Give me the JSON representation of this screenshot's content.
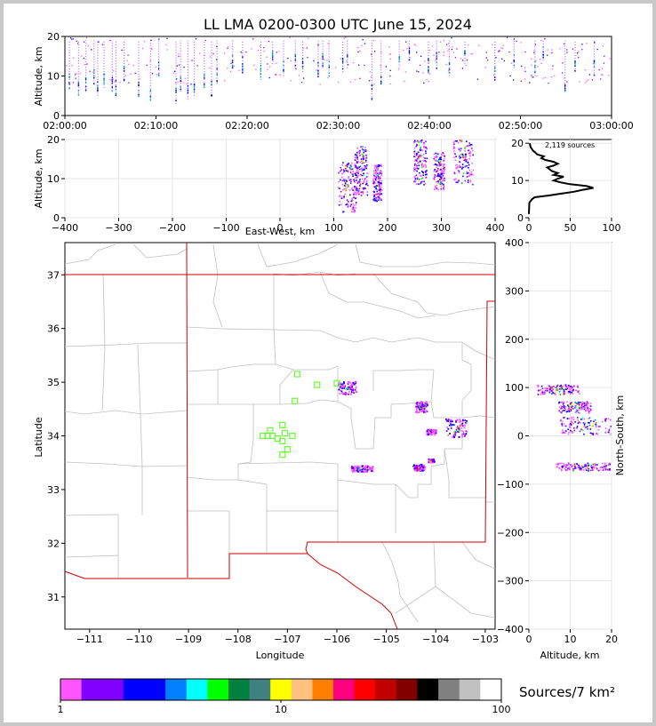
{
  "chart_data": [
    {
      "panel": "time-altitude",
      "type": "scatter",
      "title": "LL LMA 0200-0300 UTC June 15, 2024",
      "ylabel": "Altitude, km",
      "x_ticks": [
        "02:00:00",
        "02:10:00",
        "02:20:00",
        "02:30:00",
        "02:40:00",
        "02:50:00",
        "03:00:00"
      ],
      "xlim_minutes": [
        0,
        60
      ],
      "y_ticks": [
        0,
        10,
        20
      ],
      "ylim": [
        0,
        20
      ],
      "columns_min": [
        0.5,
        1.5,
        2.3,
        3.2,
        3.6,
        4.3,
        5.2,
        5.6,
        6.5,
        8.1,
        9.4,
        10.3,
        12.2,
        12.7,
        13.5,
        14.2,
        15.3,
        16.1,
        16.7,
        18.4,
        19.5,
        21.5,
        22.8,
        24.0,
        25.3,
        26.1,
        27.8,
        28.3,
        29.0,
        30.5,
        31.0,
        33.7,
        34.7,
        36.7,
        37.8,
        39.9,
        40.8,
        42.2,
        43.9,
        47.2,
        49.3,
        51.6,
        52.5,
        54.9,
        56.0,
        58.1
      ],
      "columns_ymin": [
        7,
        5,
        6,
        8,
        5,
        7,
        6,
        5,
        9,
        5,
        4,
        10,
        3,
        6,
        4,
        5,
        7,
        5,
        8,
        12,
        11,
        9,
        13,
        10,
        12,
        11,
        10,
        12,
        10,
        11,
        12,
        4,
        8,
        12,
        14,
        11,
        12,
        10,
        13,
        9,
        12,
        10,
        14,
        6,
        11,
        10
      ]
    },
    {
      "panel": "east-west-altitude",
      "type": "scatter",
      "xlabel": "East-West, km",
      "ylabel": "Altitude, km",
      "x_ticks": [
        -400,
        -300,
        -200,
        -100,
        0,
        100,
        200,
        300,
        400
      ],
      "xlim": [
        -400,
        400
      ],
      "y_ticks": [
        0,
        10,
        20
      ],
      "ylim": [
        0,
        20
      ],
      "clusters": [
        {
          "x": 125,
          "xw": 18,
          "y": 8,
          "yw": 4
        },
        {
          "x": 150,
          "xw": 12,
          "y": 12,
          "yw": 4
        },
        {
          "x": 180,
          "xw": 8,
          "y": 9,
          "yw": 3
        },
        {
          "x": 260,
          "xw": 12,
          "y": 15,
          "yw": 4
        },
        {
          "x": 295,
          "xw": 10,
          "y": 12,
          "yw": 3
        },
        {
          "x": 340,
          "xw": 18,
          "y": 15,
          "yw": 4
        }
      ]
    },
    {
      "panel": "altitude-histogram",
      "type": "line",
      "annotation": "2,119 sources",
      "x_ticks": [
        0,
        50,
        100
      ],
      "xlim": [
        0,
        100
      ],
      "y_ticks": [
        0,
        10,
        20
      ],
      "ylim": [
        0,
        21
      ],
      "profile": [
        [
          0,
          1
        ],
        [
          0.5,
          4
        ],
        [
          4,
          5
        ],
        [
          7,
          5.5
        ],
        [
          25,
          6
        ],
        [
          40,
          6.5
        ],
        [
          55,
          7
        ],
        [
          65,
          7.5
        ],
        [
          78,
          8
        ],
        [
          70,
          8.5
        ],
        [
          50,
          9
        ],
        [
          38,
          9.5
        ],
        [
          30,
          10
        ],
        [
          35,
          10.5
        ],
        [
          42,
          11
        ],
        [
          30,
          11.5
        ],
        [
          35,
          12
        ],
        [
          28,
          12.5
        ],
        [
          25,
          13
        ],
        [
          22,
          13.5
        ],
        [
          30,
          14
        ],
        [
          35,
          14.5
        ],
        [
          30,
          15
        ],
        [
          20,
          15.5
        ],
        [
          15,
          16
        ],
        [
          18,
          16.5
        ],
        [
          10,
          17
        ],
        [
          8,
          17.5
        ],
        [
          5,
          18
        ],
        [
          2,
          19
        ],
        [
          1,
          20
        ]
      ]
    },
    {
      "panel": "plan-view-map",
      "type": "scatter",
      "xlabel": "Longitude",
      "ylabel": "Latitude",
      "x_ticks": [
        -111,
        -110,
        -109,
        -108,
        -107,
        -106,
        -105,
        -104,
        -103
      ],
      "xlim": [
        -111.5,
        -102.8
      ],
      "y_ticks": [
        31,
        32,
        33,
        34,
        35,
        36,
        37
      ],
      "ylim": [
        30.4,
        37.6
      ],
      "stations": [
        [
          -106.8,
          35.15
        ],
        [
          -106.4,
          34.95
        ],
        [
          -106.85,
          34.65
        ],
        [
          -107.1,
          34.2
        ],
        [
          -107.35,
          34.1
        ],
        [
          -107.4,
          34.0
        ],
        [
          -107.3,
          34.0
        ],
        [
          -107.2,
          33.95
        ],
        [
          -107.05,
          34.05
        ],
        [
          -106.9,
          34.0
        ],
        [
          -107.1,
          33.9
        ],
        [
          -107.0,
          33.75
        ],
        [
          -107.1,
          33.65
        ],
        [
          -107.5,
          34.0
        ],
        [
          -106.0,
          34.98
        ]
      ],
      "clusters": [
        {
          "lon": -105.8,
          "lat": 34.9,
          "w": 0.18,
          "h": 0.12
        },
        {
          "lon": -104.3,
          "lat": 34.55,
          "w": 0.12,
          "h": 0.1
        },
        {
          "lon": -104.1,
          "lat": 34.08,
          "w": 0.1,
          "h": 0.05
        },
        {
          "lon": -103.6,
          "lat": 34.15,
          "w": 0.22,
          "h": 0.18
        },
        {
          "lon": -105.5,
          "lat": 33.4,
          "w": 0.22,
          "h": 0.06
        },
        {
          "lon": -104.35,
          "lat": 33.42,
          "w": 0.12,
          "h": 0.06
        },
        {
          "lon": -104.1,
          "lat": 33.55,
          "w": 0.06,
          "h": 0.03
        }
      ]
    },
    {
      "panel": "altitude-north-south",
      "type": "scatter",
      "xlabel": "Altitude, km",
      "ylabel": "North-South, km",
      "x_ticks": [
        0,
        10,
        20
      ],
      "xlim": [
        0,
        20
      ],
      "y_ticks": [
        -400,
        -300,
        -200,
        -100,
        0,
        100,
        200,
        300,
        400
      ],
      "ylim": [
        -400,
        400
      ],
      "clusters": [
        {
          "x": 7,
          "xw": 4,
          "y": 97,
          "yw": 10
        },
        {
          "x": 14,
          "xw": 5,
          "y": 22,
          "yw": 18
        },
        {
          "x": 13,
          "xw": 5,
          "y": -63,
          "yw": 8
        },
        {
          "x": 11,
          "xw": 3,
          "y": 60,
          "yw": 12
        }
      ]
    },
    {
      "panel": "colorbar",
      "type": "heatmap",
      "label": "Sources/7 km²",
      "tick_labels": [
        "1",
        "10",
        "100"
      ],
      "colors": [
        "#ff55ff",
        "#8000ff",
        "#8000ff",
        "#0000ff",
        "#0000ff",
        "#0080ff",
        "#00ffff",
        "#00ff00",
        "#008040",
        "#408080",
        "#ffff00",
        "#ffc080",
        "#ff8000",
        "#ff0080",
        "#ff0000",
        "#c00000",
        "#800000",
        "#000000",
        "#808080",
        "#c0c0c0",
        "#ffffff"
      ]
    }
  ]
}
